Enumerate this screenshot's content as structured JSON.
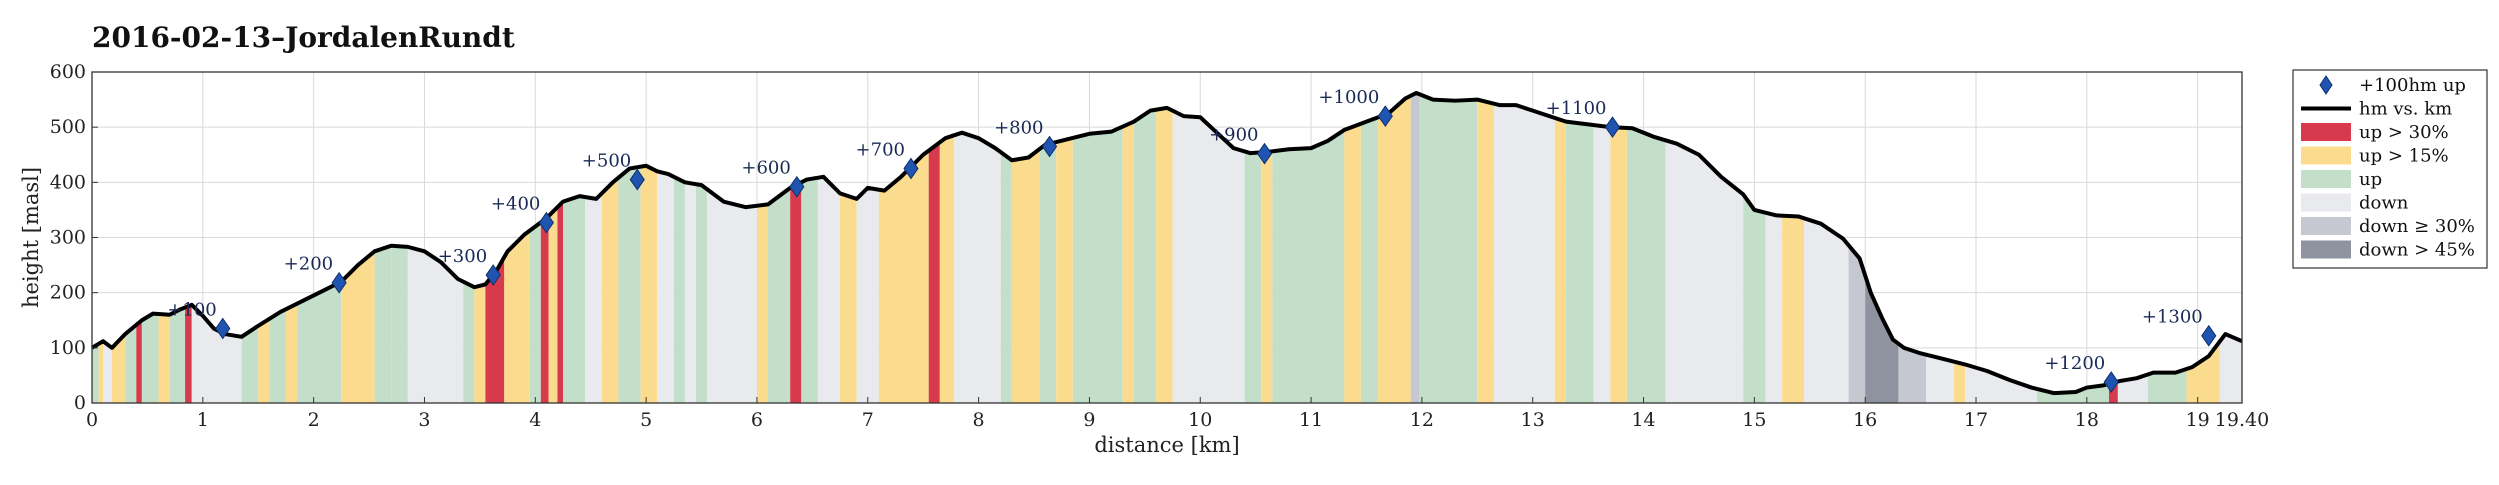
{
  "chart_data": {
    "type": "area",
    "title": "2016-02-13–JordalenRundt",
    "xlabel": "distance [km]",
    "ylabel": "height [masl]",
    "xlim": [
      0,
      19.4
    ],
    "ylim": [
      0,
      600
    ],
    "x_ticks": [
      0,
      1,
      2,
      3,
      4,
      5,
      6,
      7,
      8,
      9,
      10,
      11,
      12,
      13,
      14,
      15,
      16,
      17,
      18,
      19
    ],
    "x_tick_labels": [
      "0",
      "1",
      "2",
      "3",
      "4",
      "5",
      "6",
      "7",
      "8",
      "9",
      "10",
      "11",
      "12",
      "13",
      "14",
      "15",
      "16",
      "17",
      "18",
      "19"
    ],
    "x_end_label": "19.40",
    "y_ticks": [
      0,
      100,
      200,
      300,
      400,
      500,
      600
    ],
    "y_tick_labels": [
      "0",
      "100",
      "200",
      "300",
      "400",
      "500",
      "600"
    ],
    "grid": true,
    "legend_position": "right",
    "legend": [
      {
        "label": "+100hm up",
        "kind": "marker",
        "color": "#1f55b0"
      },
      {
        "label": "hm vs. km",
        "kind": "line",
        "color": "#000000"
      },
      {
        "label": "up > 30%",
        "kind": "patch",
        "color": "#d63a4c"
      },
      {
        "label": "up > 15%",
        "kind": "patch",
        "color": "#fbdc8f"
      },
      {
        "label": "up",
        "kind": "patch",
        "color": "#c3dfca"
      },
      {
        "label": "down",
        "kind": "patch",
        "color": "#e9eaee"
      },
      {
        "label": "down ≥ 30%",
        "kind": "patch",
        "color": "#c6c8d1"
      },
      {
        "label": "down > 45%",
        "kind": "patch",
        "color": "#8e939f"
      }
    ],
    "series": [
      {
        "name": "hm vs. km",
        "x": [
          0,
          0.1,
          0.18,
          0.3,
          0.45,
          0.55,
          0.7,
          0.8,
          0.9,
          1.0,
          1.1,
          1.2,
          1.35,
          1.5,
          1.7,
          1.9,
          2.1,
          2.25,
          2.4,
          2.55,
          2.7,
          2.85,
          3.0,
          3.15,
          3.3,
          3.45,
          3.55,
          3.65,
          3.75,
          3.9,
          4.0,
          4.1,
          4.25,
          4.4,
          4.55,
          4.7,
          4.85,
          5.0,
          5.1,
          5.2,
          5.35,
          5.5,
          5.7,
          5.9,
          6.1,
          6.3,
          6.45,
          6.6,
          6.75,
          6.9,
          7.0,
          7.15,
          7.3,
          7.5,
          7.7,
          7.85,
          8.0,
          8.15,
          8.3,
          8.45,
          8.6,
          8.8,
          9.0,
          9.2,
          9.4,
          9.55,
          9.7,
          9.85,
          10.0,
          10.15,
          10.3,
          10.45,
          10.6,
          10.8,
          11.0,
          11.15,
          11.3,
          11.5,
          11.7,
          11.85,
          11.95,
          12.1,
          12.3,
          12.5,
          12.7,
          12.85,
          13.0,
          13.15,
          13.3,
          13.5,
          13.7,
          13.9,
          14.1,
          14.3,
          14.5,
          14.7,
          14.9,
          15.0,
          15.2,
          15.4,
          15.6,
          15.8,
          15.95,
          16.05,
          16.15,
          16.25,
          16.35,
          16.5,
          16.7,
          16.9,
          17.1,
          17.3,
          17.5,
          17.7,
          17.9,
          18.0,
          18.15,
          18.3,
          18.45,
          18.6,
          18.8,
          18.95,
          19.1,
          19.25,
          19.4
        ],
        "y": [
          100,
          112,
          100,
          125,
          150,
          162,
          160,
          170,
          178,
          158,
          135,
          125,
          120,
          140,
          165,
          185,
          205,
          220,
          250,
          275,
          285,
          283,
          275,
          255,
          225,
          210,
          215,
          240,
          275,
          305,
          320,
          335,
          365,
          375,
          370,
          400,
          425,
          430,
          420,
          415,
          400,
          395,
          365,
          355,
          360,
          390,
          405,
          410,
          380,
          370,
          390,
          385,
          410,
          450,
          480,
          490,
          480,
          462,
          440,
          445,
          468,
          478,
          488,
          492,
          510,
          530,
          535,
          520,
          518,
          490,
          462,
          453,
          455,
          460,
          462,
          475,
          495,
          510,
          525,
          552,
          562,
          550,
          548,
          550,
          540,
          540,
          530,
          520,
          510,
          505,
          500,
          498,
          482,
          470,
          450,
          410,
          378,
          350,
          340,
          338,
          325,
          298,
          262,
          200,
          155,
          115,
          100,
          90,
          80,
          70,
          58,
          42,
          28,
          18,
          20,
          28,
          32,
          40,
          45,
          55,
          55,
          65,
          85,
          125,
          112
        ]
      }
    ],
    "markers": [
      {
        "label": "+100",
        "x": 1.18,
        "y": 135
      },
      {
        "label": "+200",
        "x": 2.23,
        "y": 218
      },
      {
        "label": "+300",
        "x": 3.62,
        "y": 232
      },
      {
        "label": "+400",
        "x": 4.1,
        "y": 327
      },
      {
        "label": "+500",
        "x": 4.92,
        "y": 405
      },
      {
        "label": "+600",
        "x": 6.36,
        "y": 392
      },
      {
        "label": "+700",
        "x": 7.39,
        "y": 425
      },
      {
        "label": "+800",
        "x": 8.64,
        "y": 465
      },
      {
        "label": "+900",
        "x": 10.58,
        "y": 452
      },
      {
        "label": "+1000",
        "x": 11.67,
        "y": 520
      },
      {
        "label": "+1100",
        "x": 13.72,
        "y": 500
      },
      {
        "label": "+1200",
        "x": 18.22,
        "y": 38
      },
      {
        "label": "+1300",
        "x": 19.1,
        "y": 122
      }
    ],
    "segments": [
      {
        "from": 0.0,
        "to": 0.06,
        "cat": "up"
      },
      {
        "from": 0.06,
        "to": 0.1,
        "cat": "up > 15%"
      },
      {
        "from": 0.1,
        "to": 0.18,
        "cat": "down"
      },
      {
        "from": 0.18,
        "to": 0.3,
        "cat": "up > 15%"
      },
      {
        "from": 0.3,
        "to": 0.4,
        "cat": "up"
      },
      {
        "from": 0.4,
        "to": 0.45,
        "cat": "up > 30%"
      },
      {
        "from": 0.45,
        "to": 0.6,
        "cat": "up"
      },
      {
        "from": 0.6,
        "to": 0.7,
        "cat": "up > 15%"
      },
      {
        "from": 0.7,
        "to": 0.84,
        "cat": "up"
      },
      {
        "from": 0.84,
        "to": 0.9,
        "cat": "up > 30%"
      },
      {
        "from": 0.9,
        "to": 1.05,
        "cat": "down"
      },
      {
        "from": 1.05,
        "to": 1.35,
        "cat": "down"
      },
      {
        "from": 1.35,
        "to": 1.5,
        "cat": "up"
      },
      {
        "from": 1.5,
        "to": 1.6,
        "cat": "up > 15%"
      },
      {
        "from": 1.6,
        "to": 1.75,
        "cat": "up"
      },
      {
        "from": 1.75,
        "to": 1.85,
        "cat": "up > 15%"
      },
      {
        "from": 1.85,
        "to": 2.25,
        "cat": "up"
      },
      {
        "from": 2.25,
        "to": 2.55,
        "cat": "up > 15%"
      },
      {
        "from": 2.55,
        "to": 2.7,
        "cat": "up"
      },
      {
        "from": 2.7,
        "to": 2.85,
        "cat": "up"
      },
      {
        "from": 2.85,
        "to": 3.35,
        "cat": "down"
      },
      {
        "from": 3.35,
        "to": 3.45,
        "cat": "up"
      },
      {
        "from": 3.45,
        "to": 3.55,
        "cat": "up > 15%"
      },
      {
        "from": 3.55,
        "to": 3.72,
        "cat": "up > 30%"
      },
      {
        "from": 3.72,
        "to": 3.95,
        "cat": "up > 15%"
      },
      {
        "from": 3.95,
        "to": 4.05,
        "cat": "up"
      },
      {
        "from": 4.05,
        "to": 4.12,
        "cat": "up > 30%"
      },
      {
        "from": 4.12,
        "to": 4.2,
        "cat": "up > 15%"
      },
      {
        "from": 4.2,
        "to": 4.25,
        "cat": "up > 30%"
      },
      {
        "from": 4.25,
        "to": 4.45,
        "cat": "up"
      },
      {
        "from": 4.45,
        "to": 4.6,
        "cat": "down"
      },
      {
        "from": 4.6,
        "to": 4.75,
        "cat": "up > 15%"
      },
      {
        "from": 4.75,
        "to": 4.95,
        "cat": "up"
      },
      {
        "from": 4.95,
        "to": 5.1,
        "cat": "up > 15%"
      },
      {
        "from": 5.1,
        "to": 5.25,
        "cat": "down"
      },
      {
        "from": 5.25,
        "to": 5.35,
        "cat": "up"
      },
      {
        "from": 5.35,
        "to": 5.45,
        "cat": "down"
      },
      {
        "from": 5.45,
        "to": 5.55,
        "cat": "up"
      },
      {
        "from": 5.55,
        "to": 6.0,
        "cat": "down"
      },
      {
        "from": 6.0,
        "to": 6.1,
        "cat": "up > 15%"
      },
      {
        "from": 6.1,
        "to": 6.3,
        "cat": "up"
      },
      {
        "from": 6.3,
        "to": 6.4,
        "cat": "up > 30%"
      },
      {
        "from": 6.4,
        "to": 6.55,
        "cat": "up"
      },
      {
        "from": 6.55,
        "to": 6.75,
        "cat": "down"
      },
      {
        "from": 6.75,
        "to": 6.9,
        "cat": "up > 15%"
      },
      {
        "from": 6.9,
        "to": 7.1,
        "cat": "down"
      },
      {
        "from": 7.1,
        "to": 7.55,
        "cat": "up > 15%"
      },
      {
        "from": 7.55,
        "to": 7.65,
        "cat": "up > 30%"
      },
      {
        "from": 7.65,
        "to": 7.78,
        "cat": "up > 15%"
      },
      {
        "from": 7.78,
        "to": 8.2,
        "cat": "down"
      },
      {
        "from": 8.2,
        "to": 8.3,
        "cat": "up"
      },
      {
        "from": 8.3,
        "to": 8.55,
        "cat": "up > 15%"
      },
      {
        "from": 8.55,
        "to": 8.7,
        "cat": "up"
      },
      {
        "from": 8.7,
        "to": 8.85,
        "cat": "up > 15%"
      },
      {
        "from": 8.85,
        "to": 9.3,
        "cat": "up"
      },
      {
        "from": 9.3,
        "to": 9.4,
        "cat": "up > 15%"
      },
      {
        "from": 9.4,
        "to": 9.6,
        "cat": "up"
      },
      {
        "from": 9.6,
        "to": 9.75,
        "cat": "up > 15%"
      },
      {
        "from": 9.75,
        "to": 10.4,
        "cat": "down"
      },
      {
        "from": 10.4,
        "to": 10.55,
        "cat": "up"
      },
      {
        "from": 10.55,
        "to": 10.65,
        "cat": "up > 15%"
      },
      {
        "from": 10.65,
        "to": 10.9,
        "cat": "up"
      },
      {
        "from": 10.9,
        "to": 11.3,
        "cat": "up"
      },
      {
        "from": 11.3,
        "to": 11.45,
        "cat": "up > 15%"
      },
      {
        "from": 11.45,
        "to": 11.6,
        "cat": "up"
      },
      {
        "from": 11.6,
        "to": 11.9,
        "cat": "up > 15%"
      },
      {
        "from": 11.9,
        "to": 11.98,
        "cat": "down ≥ 30%"
      },
      {
        "from": 11.98,
        "to": 12.5,
        "cat": "up"
      },
      {
        "from": 12.5,
        "to": 12.65,
        "cat": "up > 15%"
      },
      {
        "from": 12.65,
        "to": 13.2,
        "cat": "down"
      },
      {
        "from": 13.2,
        "to": 13.3,
        "cat": "up > 15%"
      },
      {
        "from": 13.3,
        "to": 13.55,
        "cat": "up"
      },
      {
        "from": 13.55,
        "to": 13.7,
        "cat": "down"
      },
      {
        "from": 13.7,
        "to": 13.85,
        "cat": "up > 15%"
      },
      {
        "from": 13.85,
        "to": 14.2,
        "cat": "up"
      },
      {
        "from": 14.2,
        "to": 14.9,
        "cat": "down"
      },
      {
        "from": 14.9,
        "to": 15.1,
        "cat": "up"
      },
      {
        "from": 15.1,
        "to": 15.25,
        "cat": "down"
      },
      {
        "from": 15.25,
        "to": 15.45,
        "cat": "up > 15%"
      },
      {
        "from": 15.45,
        "to": 15.7,
        "cat": "down"
      },
      {
        "from": 15.7,
        "to": 15.85,
        "cat": "down"
      },
      {
        "from": 15.85,
        "to": 16.0,
        "cat": "down ≥ 30%"
      },
      {
        "from": 16.0,
        "to": 16.3,
        "cat": "down > 45%"
      },
      {
        "from": 16.3,
        "to": 16.55,
        "cat": "down ≥ 30%"
      },
      {
        "from": 16.55,
        "to": 16.8,
        "cat": "down"
      },
      {
        "from": 16.8,
        "to": 16.9,
        "cat": "up > 15%"
      },
      {
        "from": 16.9,
        "to": 17.55,
        "cat": "down"
      },
      {
        "from": 17.55,
        "to": 17.95,
        "cat": "up"
      },
      {
        "from": 17.95,
        "to": 18.2,
        "cat": "up"
      },
      {
        "from": 18.2,
        "to": 18.28,
        "cat": "up > 30%"
      },
      {
        "from": 18.28,
        "to": 18.55,
        "cat": "down"
      },
      {
        "from": 18.55,
        "to": 18.9,
        "cat": "up"
      },
      {
        "from": 18.9,
        "to": 19.2,
        "cat": "up > 15%"
      },
      {
        "from": 19.2,
        "to": 19.4,
        "cat": "down"
      }
    ]
  }
}
